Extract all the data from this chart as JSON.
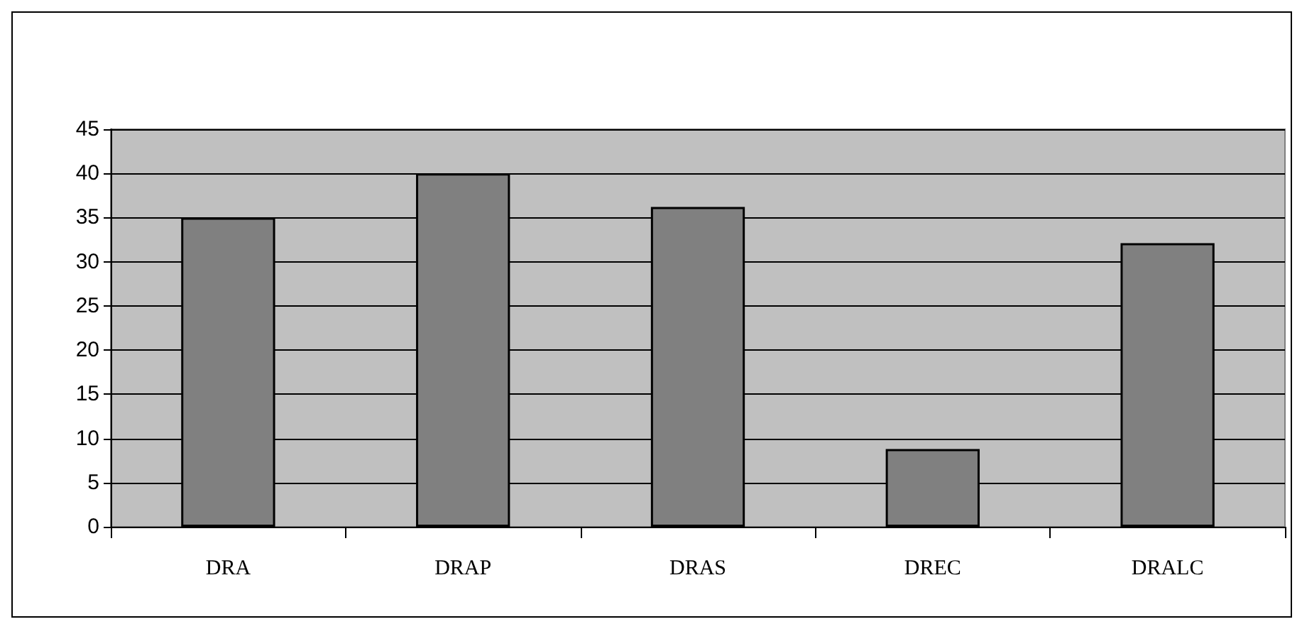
{
  "chart_data": {
    "type": "bar",
    "categories": [
      "DRA",
      "DRAP",
      "DRAS",
      "DREC",
      "DRALC"
    ],
    "values": [
      35,
      40,
      36.2,
      8.8,
      32.1
    ],
    "color": "#808080",
    "ylim": [
      0,
      45
    ],
    "yticks": [
      0,
      5,
      10,
      15,
      20,
      25,
      30,
      35,
      40,
      45
    ],
    "grid": "y"
  }
}
